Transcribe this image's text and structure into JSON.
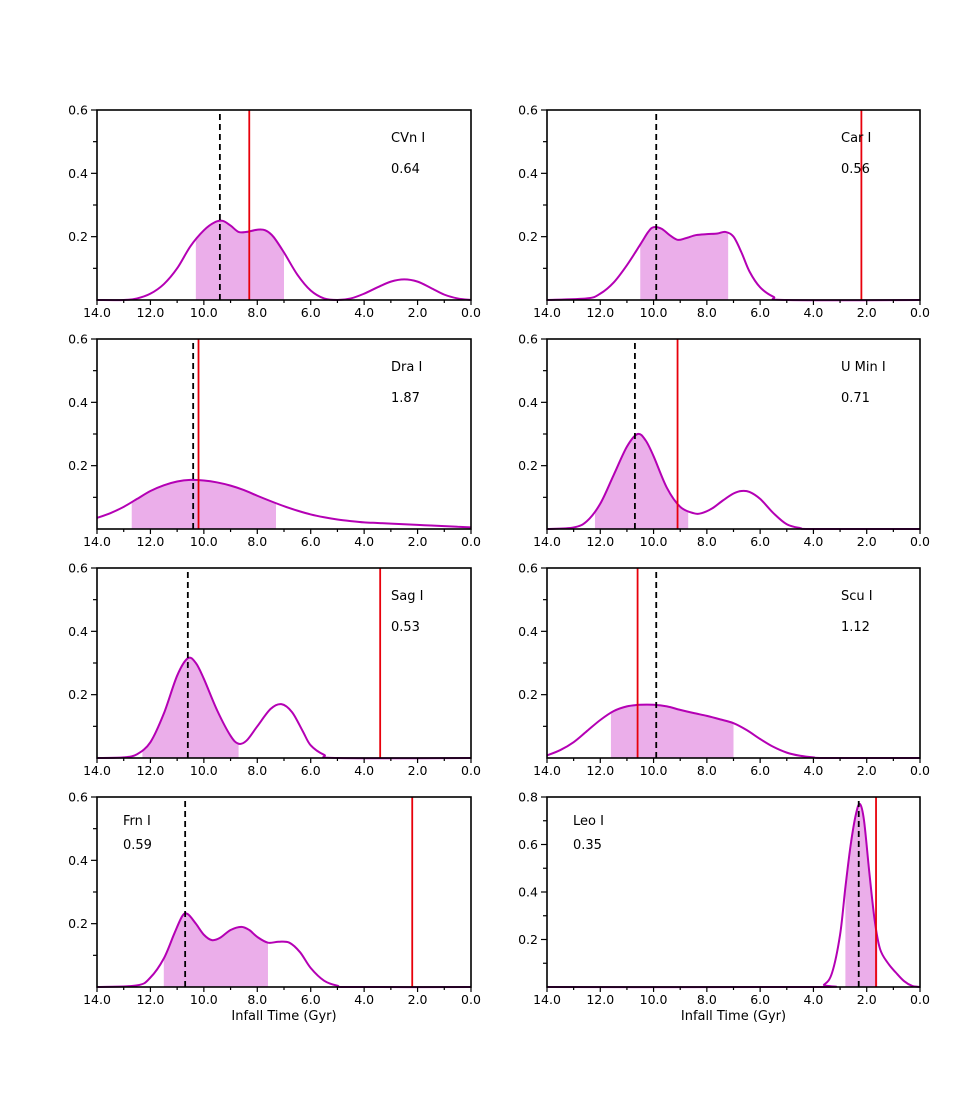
{
  "chart_data": [
    {
      "type": "area",
      "name": "CVn I",
      "value_label": "0.64",
      "label_pos": "top-right",
      "xlim": [
        14.0,
        0.0
      ],
      "ylim": [
        0,
        0.6
      ],
      "xticks": [
        "14.0",
        "12.0",
        "10.0",
        "8.0",
        "6.0",
        "4.0",
        "2.0",
        "0.0"
      ],
      "yticks": [
        "0.2",
        "0.4",
        "0.6"
      ],
      "xlabel": "",
      "kde": [
        [
          14.0,
          0.0
        ],
        [
          13.0,
          0.0
        ],
        [
          12.5,
          0.005
        ],
        [
          12.0,
          0.02
        ],
        [
          11.5,
          0.05
        ],
        [
          11.0,
          0.1
        ],
        [
          10.5,
          0.17
        ],
        [
          10.0,
          0.22
        ],
        [
          9.6,
          0.245
        ],
        [
          9.3,
          0.25
        ],
        [
          9.0,
          0.235
        ],
        [
          8.7,
          0.215
        ],
        [
          8.4,
          0.215
        ],
        [
          8.0,
          0.222
        ],
        [
          7.7,
          0.22
        ],
        [
          7.4,
          0.2
        ],
        [
          7.0,
          0.15
        ],
        [
          6.5,
          0.08
        ],
        [
          6.0,
          0.03
        ],
        [
          5.5,
          0.005
        ],
        [
          5.0,
          0.0
        ],
        [
          4.5,
          0.005
        ],
        [
          4.0,
          0.02
        ],
        [
          3.5,
          0.04
        ],
        [
          3.0,
          0.058
        ],
        [
          2.5,
          0.065
        ],
        [
          2.0,
          0.058
        ],
        [
          1.5,
          0.038
        ],
        [
          1.0,
          0.017
        ],
        [
          0.5,
          0.005
        ],
        [
          0.0,
          0.0
        ]
      ],
      "shade": [
        10.3,
        7.0
      ],
      "median": 9.4,
      "infall": 8.3
    },
    {
      "type": "area",
      "name": "Car I",
      "value_label": "0.56",
      "label_pos": "top-right",
      "xlim": [
        14.0,
        0.0
      ],
      "ylim": [
        0,
        0.6
      ],
      "xticks": [
        "14.0",
        "12.0",
        "10.0",
        "8.0",
        "6.0",
        "4.0",
        "2.0",
        "0.0"
      ],
      "yticks": [
        "0.2",
        "0.4",
        "0.6"
      ],
      "xlabel": "",
      "kde": [
        [
          14.0,
          0.0
        ],
        [
          12.5,
          0.005
        ],
        [
          12.0,
          0.02
        ],
        [
          11.5,
          0.055
        ],
        [
          11.0,
          0.11
        ],
        [
          10.5,
          0.175
        ],
        [
          10.2,
          0.215
        ],
        [
          10.0,
          0.23
        ],
        [
          9.7,
          0.225
        ],
        [
          9.4,
          0.205
        ],
        [
          9.1,
          0.19
        ],
        [
          8.8,
          0.195
        ],
        [
          8.4,
          0.205
        ],
        [
          8.0,
          0.208
        ],
        [
          7.6,
          0.21
        ],
        [
          7.3,
          0.215
        ],
        [
          7.0,
          0.2
        ],
        [
          6.7,
          0.15
        ],
        [
          6.4,
          0.09
        ],
        [
          6.0,
          0.04
        ],
        [
          5.5,
          0.01
        ],
        [
          5.0,
          0.0
        ],
        [
          0.0,
          0.0
        ]
      ],
      "shade": [
        10.5,
        7.2
      ],
      "median": 9.9,
      "infall": 2.2
    },
    {
      "type": "area",
      "name": "Dra I",
      "value_label": "1.87",
      "label_pos": "top-right",
      "xlim": [
        14.0,
        0.0
      ],
      "ylim": [
        0,
        0.6
      ],
      "xticks": [
        "14.0",
        "12.0",
        "10.0",
        "8.0",
        "6.0",
        "4.0",
        "2.0",
        "0.0"
      ],
      "yticks": [
        "0.2",
        "0.4",
        "0.6"
      ],
      "xlabel": "",
      "kde": [
        [
          14.0,
          0.035
        ],
        [
          13.5,
          0.05
        ],
        [
          13.0,
          0.07
        ],
        [
          12.5,
          0.095
        ],
        [
          12.0,
          0.12
        ],
        [
          11.5,
          0.138
        ],
        [
          11.0,
          0.15
        ],
        [
          10.5,
          0.155
        ],
        [
          10.0,
          0.153
        ],
        [
          9.5,
          0.147
        ],
        [
          9.0,
          0.137
        ],
        [
          8.5,
          0.123
        ],
        [
          8.0,
          0.105
        ],
        [
          7.5,
          0.088
        ],
        [
          7.0,
          0.072
        ],
        [
          6.5,
          0.058
        ],
        [
          6.0,
          0.046
        ],
        [
          5.5,
          0.037
        ],
        [
          5.0,
          0.03
        ],
        [
          4.5,
          0.025
        ],
        [
          4.0,
          0.021
        ],
        [
          3.5,
          0.019
        ],
        [
          3.0,
          0.017
        ],
        [
          2.5,
          0.015
        ],
        [
          2.0,
          0.013
        ],
        [
          1.5,
          0.011
        ],
        [
          1.0,
          0.009
        ],
        [
          0.5,
          0.007
        ],
        [
          0.0,
          0.005
        ]
      ],
      "shade": [
        12.7,
        7.3
      ],
      "median": 10.4,
      "infall": 10.2
    },
    {
      "type": "area",
      "name": "U Min I",
      "value_label": "0.71",
      "label_pos": "top-right",
      "xlim": [
        14.0,
        0.0
      ],
      "ylim": [
        0,
        0.6
      ],
      "xticks": [
        "14.0",
        "12.0",
        "10.0",
        "8.0",
        "6.0",
        "4.0",
        "2.0",
        "0.0"
      ],
      "yticks": [
        "0.2",
        "0.4",
        "0.6"
      ],
      "xlabel": "",
      "kde": [
        [
          14.0,
          0.0
        ],
        [
          13.0,
          0.005
        ],
        [
          12.5,
          0.025
        ],
        [
          12.0,
          0.08
        ],
        [
          11.5,
          0.17
        ],
        [
          11.0,
          0.26
        ],
        [
          10.6,
          0.3
        ],
        [
          10.3,
          0.28
        ],
        [
          10.0,
          0.23
        ],
        [
          9.5,
          0.13
        ],
        [
          9.0,
          0.07
        ],
        [
          8.5,
          0.05
        ],
        [
          8.2,
          0.05
        ],
        [
          7.8,
          0.065
        ],
        [
          7.4,
          0.09
        ],
        [
          7.0,
          0.112
        ],
        [
          6.7,
          0.12
        ],
        [
          6.4,
          0.117
        ],
        [
          6.0,
          0.095
        ],
        [
          5.5,
          0.05
        ],
        [
          5.0,
          0.015
        ],
        [
          4.5,
          0.003
        ],
        [
          4.0,
          0.0
        ],
        [
          0.0,
          0.0
        ]
      ],
      "shade": [
        12.2,
        8.7
      ],
      "median": 10.7,
      "infall": 9.1
    },
    {
      "type": "area",
      "name": "Sag I",
      "value_label": "0.53",
      "label_pos": "top-right",
      "xlim": [
        14.0,
        0.0
      ],
      "ylim": [
        0,
        0.6
      ],
      "xticks": [
        "14.0",
        "12.0",
        "10.0",
        "8.0",
        "6.0",
        "4.0",
        "2.0",
        "0.0"
      ],
      "yticks": [
        "0.2",
        "0.4",
        "0.6"
      ],
      "xlabel": "",
      "kde": [
        [
          14.0,
          0.0
        ],
        [
          13.0,
          0.002
        ],
        [
          12.5,
          0.012
        ],
        [
          12.0,
          0.05
        ],
        [
          11.5,
          0.14
        ],
        [
          11.0,
          0.26
        ],
        [
          10.6,
          0.315
        ],
        [
          10.3,
          0.3
        ],
        [
          10.0,
          0.25
        ],
        [
          9.5,
          0.15
        ],
        [
          9.0,
          0.07
        ],
        [
          8.7,
          0.045
        ],
        [
          8.4,
          0.055
        ],
        [
          8.0,
          0.1
        ],
        [
          7.5,
          0.155
        ],
        [
          7.1,
          0.17
        ],
        [
          6.7,
          0.145
        ],
        [
          6.3,
          0.085
        ],
        [
          6.0,
          0.04
        ],
        [
          5.5,
          0.01
        ],
        [
          5.0,
          0.0
        ],
        [
          0.0,
          0.0
        ]
      ],
      "shade": [
        12.3,
        8.7
      ],
      "median": 10.6,
      "infall": 3.4
    },
    {
      "type": "area",
      "name": "Scu I",
      "value_label": "1.12",
      "label_pos": "top-right",
      "xlim": [
        14.0,
        0.0
      ],
      "ylim": [
        0,
        0.6
      ],
      "xticks": [
        "14.0",
        "12.0",
        "10.0",
        "8.0",
        "6.0",
        "4.0",
        "2.0",
        "0.0"
      ],
      "yticks": [
        "0.2",
        "0.4",
        "0.6"
      ],
      "xlabel": "",
      "kde": [
        [
          14.0,
          0.008
        ],
        [
          13.5,
          0.025
        ],
        [
          13.0,
          0.05
        ],
        [
          12.5,
          0.085
        ],
        [
          12.0,
          0.12
        ],
        [
          11.5,
          0.148
        ],
        [
          11.0,
          0.163
        ],
        [
          10.5,
          0.168
        ],
        [
          10.0,
          0.168
        ],
        [
          9.5,
          0.163
        ],
        [
          9.0,
          0.152
        ],
        [
          8.5,
          0.142
        ],
        [
          8.0,
          0.133
        ],
        [
          7.5,
          0.122
        ],
        [
          7.0,
          0.11
        ],
        [
          6.5,
          0.088
        ],
        [
          6.0,
          0.06
        ],
        [
          5.5,
          0.035
        ],
        [
          5.0,
          0.017
        ],
        [
          4.5,
          0.007
        ],
        [
          4.0,
          0.002
        ],
        [
          3.5,
          0.0
        ],
        [
          0.0,
          0.0
        ]
      ],
      "shade": [
        11.6,
        7.0
      ],
      "median": 9.9,
      "infall": 10.6
    },
    {
      "type": "area",
      "name": "Frn I",
      "value_label": "0.59",
      "label_pos": "top-left",
      "xlim": [
        14.0,
        0.0
      ],
      "ylim": [
        0,
        0.6
      ],
      "xticks": [
        "14.0",
        "12.0",
        "10.0",
        "8.0",
        "6.0",
        "4.0",
        "2.0",
        "0.0"
      ],
      "yticks": [
        "0.2",
        "0.4",
        "0.6"
      ],
      "xlabel": "Infall Time (Gyr)",
      "kde": [
        [
          14.0,
          0.0
        ],
        [
          12.5,
          0.005
        ],
        [
          12.0,
          0.03
        ],
        [
          11.5,
          0.09
        ],
        [
          11.1,
          0.17
        ],
        [
          10.8,
          0.225
        ],
        [
          10.6,
          0.23
        ],
        [
          10.3,
          0.2
        ],
        [
          10.0,
          0.165
        ],
        [
          9.7,
          0.148
        ],
        [
          9.4,
          0.155
        ],
        [
          9.0,
          0.18
        ],
        [
          8.6,
          0.19
        ],
        [
          8.3,
          0.18
        ],
        [
          8.0,
          0.158
        ],
        [
          7.6,
          0.14
        ],
        [
          7.2,
          0.143
        ],
        [
          6.8,
          0.14
        ],
        [
          6.4,
          0.11
        ],
        [
          6.0,
          0.06
        ],
        [
          5.5,
          0.02
        ],
        [
          5.0,
          0.004
        ],
        [
          4.5,
          0.0
        ],
        [
          0.0,
          0.0
        ]
      ],
      "shade": [
        11.5,
        7.6
      ],
      "median": 10.7,
      "infall": 2.2
    },
    {
      "type": "area",
      "name": "Leo I",
      "value_label": "0.35",
      "label_pos": "top-left",
      "xlim": [
        14.0,
        0.0
      ],
      "ylim": [
        0,
        0.8
      ],
      "xticks": [
        "14.0",
        "12.0",
        "10.0",
        "8.0",
        "6.0",
        "4.0",
        "2.0",
        "0.0"
      ],
      "yticks": [
        "0.2",
        "0.4",
        "0.6",
        "0.8"
      ],
      "xlabel": "Infall Time (Gyr)",
      "kde": [
        [
          14.0,
          0.0
        ],
        [
          4.0,
          0.0
        ],
        [
          3.6,
          0.01
        ],
        [
          3.3,
          0.06
        ],
        [
          3.0,
          0.22
        ],
        [
          2.8,
          0.42
        ],
        [
          2.6,
          0.6
        ],
        [
          2.4,
          0.73
        ],
        [
          2.25,
          0.77
        ],
        [
          2.1,
          0.7
        ],
        [
          1.9,
          0.48
        ],
        [
          1.7,
          0.28
        ],
        [
          1.5,
          0.16
        ],
        [
          1.2,
          0.1
        ],
        [
          0.9,
          0.06
        ],
        [
          0.6,
          0.025
        ],
        [
          0.3,
          0.005
        ],
        [
          0.0,
          0.0
        ]
      ],
      "shade": [
        2.8,
        1.6
      ],
      "median": 2.3,
      "infall": 1.65
    }
  ]
}
